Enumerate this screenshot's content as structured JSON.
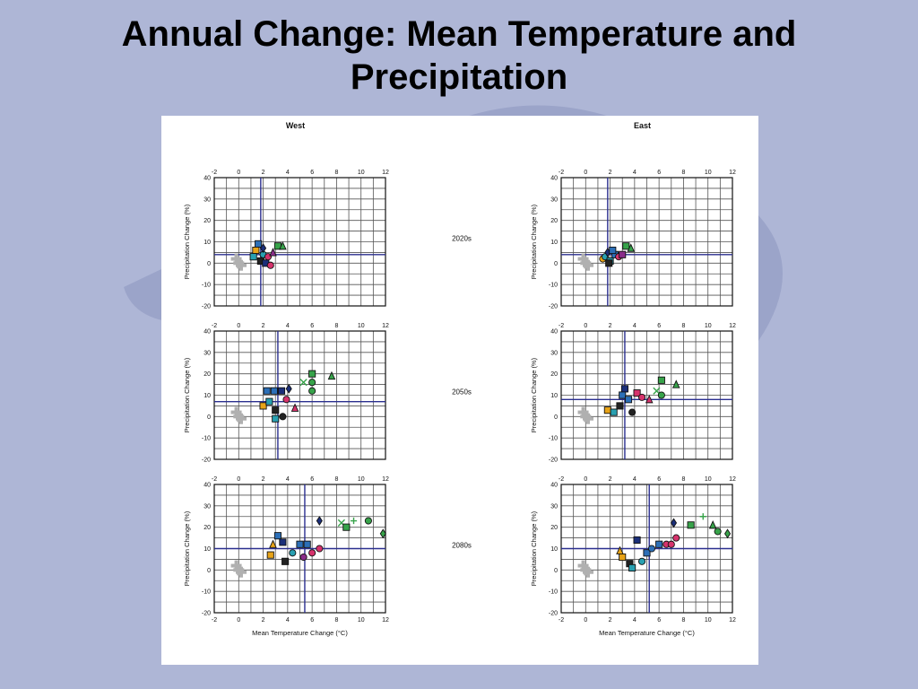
{
  "slide": {
    "title_line1": "Annual Change: Mean Temperature and",
    "title_line2": "Precipitation"
  },
  "colors": {
    "background": "#aeb6d6",
    "reference_line": "#2b2f8f",
    "observed_marker": "#b0b0b0",
    "model_colors": [
      "#2c6fb7",
      "#e8a317",
      "#29a0b1",
      "#1b2f7a",
      "#d6336c",
      "#8a2d8a",
      "#37a34a",
      "#222222"
    ]
  },
  "chart_data": {
    "type": "scatter",
    "column_titles": [
      "West",
      "East"
    ],
    "row_labels": [
      "2020s",
      "2050s",
      "2080s"
    ],
    "xlabel": "Mean Temperature Change (°C)",
    "ylabel": "Precipitation Change (%)",
    "xlim": [
      -2,
      12
    ],
    "ylim": [
      -20,
      40
    ],
    "xticks": [
      "-2",
      "0",
      "2",
      "4",
      "6",
      "8",
      "10",
      "12"
    ],
    "yticks": [
      "40",
      "30",
      "20",
      "10",
      "0",
      "-10",
      "-20"
    ],
    "grid": true,
    "panels": [
      {
        "region": "West",
        "period": "2020s",
        "ref_x": 1.8,
        "ref_y": 4,
        "observed": [
          [
            0,
            0
          ],
          [
            -0.2,
            2
          ],
          [
            0.2,
            -1
          ]
        ],
        "points": [
          [
            1.6,
            9,
            "square",
            0
          ],
          [
            1.4,
            6,
            "square",
            1
          ],
          [
            2.0,
            4,
            "circle",
            2
          ],
          [
            1.8,
            1,
            "square",
            7
          ],
          [
            2.2,
            0,
            "square",
            3
          ],
          [
            2.4,
            3,
            "circle",
            4
          ],
          [
            2.8,
            5,
            "triangle",
            5
          ],
          [
            3.2,
            8,
            "square",
            6
          ],
          [
            3.6,
            8,
            "triangle",
            6
          ],
          [
            2.6,
            -1,
            "circle",
            4
          ],
          [
            1.2,
            3,
            "square",
            2
          ],
          [
            2.0,
            7,
            "diamond",
            3
          ]
        ]
      },
      {
        "region": "West",
        "period": "2050s",
        "ref_x": 3.2,
        "ref_y": 7,
        "observed": [
          [
            0,
            0
          ],
          [
            -0.2,
            2
          ],
          [
            0.2,
            -1
          ]
        ],
        "points": [
          [
            2.3,
            12,
            "square",
            0
          ],
          [
            2.9,
            12,
            "square",
            0
          ],
          [
            3.5,
            12,
            "square",
            3
          ],
          [
            4.1,
            13,
            "diamond",
            3
          ],
          [
            2.0,
            5,
            "square",
            1
          ],
          [
            2.5,
            7,
            "square",
            2
          ],
          [
            3.0,
            3,
            "square",
            7
          ],
          [
            3.6,
            0,
            "circle",
            7
          ],
          [
            3.0,
            -1,
            "square",
            2
          ],
          [
            3.9,
            8,
            "circle",
            4
          ],
          [
            4.6,
            4,
            "triangle",
            4
          ],
          [
            5.3,
            16,
            "x",
            6
          ],
          [
            6.0,
            20,
            "square",
            6
          ],
          [
            6.0,
            16,
            "circle",
            6
          ],
          [
            6.0,
            12,
            "circle",
            6
          ],
          [
            7.6,
            19,
            "triangle",
            6
          ]
        ]
      },
      {
        "region": "West",
        "period": "2080s",
        "ref_x": 5.4,
        "ref_y": 10,
        "observed": [
          [
            0,
            0
          ],
          [
            -0.2,
            2
          ],
          [
            0.2,
            -1
          ]
        ],
        "points": [
          [
            2.6,
            7,
            "square",
            1
          ],
          [
            2.8,
            12,
            "triangle",
            1
          ],
          [
            3.2,
            16,
            "square",
            0
          ],
          [
            3.6,
            13,
            "square",
            3
          ],
          [
            3.8,
            4,
            "square",
            7
          ],
          [
            4.4,
            8,
            "circle",
            2
          ],
          [
            5.0,
            12,
            "square",
            0
          ],
          [
            5.3,
            6,
            "circle",
            5
          ],
          [
            5.6,
            12,
            "square",
            0
          ],
          [
            6.0,
            8,
            "circle",
            4
          ],
          [
            6.6,
            10,
            "circle",
            4
          ],
          [
            6.6,
            23,
            "diamond",
            3
          ],
          [
            8.4,
            22,
            "x",
            6
          ],
          [
            9.4,
            23,
            "plus",
            6
          ],
          [
            8.8,
            20,
            "square",
            6
          ],
          [
            10.6,
            23,
            "circle",
            6
          ],
          [
            11.8,
            17,
            "diamond",
            6
          ]
        ]
      },
      {
        "region": "East",
        "period": "2020s",
        "ref_x": 1.8,
        "ref_y": 4,
        "observed": [
          [
            0,
            0
          ],
          [
            -0.2,
            2
          ],
          [
            0.2,
            -1
          ]
        ],
        "points": [
          [
            1.4,
            2,
            "circle",
            1
          ],
          [
            1.6,
            3,
            "circle",
            2
          ],
          [
            2.0,
            1,
            "square",
            2
          ],
          [
            1.8,
            5,
            "diamond",
            3
          ],
          [
            2.4,
            4,
            "square",
            0
          ],
          [
            2.7,
            3,
            "circle",
            4
          ],
          [
            3.0,
            4,
            "square",
            5
          ],
          [
            3.3,
            8,
            "square",
            6
          ],
          [
            3.7,
            7,
            "triangle",
            6
          ],
          [
            2.2,
            6,
            "square",
            0
          ],
          [
            1.9,
            0,
            "square",
            7
          ]
        ]
      },
      {
        "region": "East",
        "period": "2050s",
        "ref_x": 3.2,
        "ref_y": 8,
        "observed": [
          [
            0,
            0
          ],
          [
            -0.2,
            2
          ],
          [
            0.2,
            -1
          ]
        ],
        "points": [
          [
            1.8,
            3,
            "square",
            1
          ],
          [
            2.3,
            2,
            "square",
            2
          ],
          [
            2.8,
            5,
            "square",
            7
          ],
          [
            3.2,
            13,
            "square",
            3
          ],
          [
            3.0,
            10,
            "square",
            0
          ],
          [
            3.5,
            8,
            "square",
            0
          ],
          [
            3.8,
            2,
            "circle",
            7
          ],
          [
            4.2,
            11,
            "square",
            4
          ],
          [
            4.6,
            9,
            "circle",
            4
          ],
          [
            5.2,
            8,
            "triangle",
            4
          ],
          [
            5.8,
            12,
            "x",
            6
          ],
          [
            6.2,
            17,
            "square",
            6
          ],
          [
            6.2,
            10,
            "circle",
            6
          ],
          [
            7.4,
            15,
            "triangle",
            6
          ]
        ]
      },
      {
        "region": "East",
        "period": "2080s",
        "ref_x": 5.2,
        "ref_y": 10,
        "observed": [
          [
            0,
            0
          ],
          [
            -0.2,
            2
          ],
          [
            0.2,
            -1
          ]
        ],
        "points": [
          [
            2.8,
            9,
            "triangle",
            1
          ],
          [
            3.0,
            6,
            "square",
            1
          ],
          [
            3.6,
            3,
            "square",
            7
          ],
          [
            3.8,
            1,
            "square",
            2
          ],
          [
            4.2,
            14,
            "square",
            3
          ],
          [
            4.6,
            4,
            "circle",
            2
          ],
          [
            5.0,
            8,
            "square",
            0
          ],
          [
            5.4,
            10,
            "circle",
            0
          ],
          [
            6.0,
            12,
            "square",
            0
          ],
          [
            6.6,
            12,
            "circle",
            4
          ],
          [
            7.0,
            12,
            "circle",
            4
          ],
          [
            7.4,
            15,
            "circle",
            4
          ],
          [
            7.2,
            22,
            "diamond",
            3
          ],
          [
            8.6,
            21,
            "square",
            6
          ],
          [
            9.6,
            25,
            "plus",
            6
          ],
          [
            10.4,
            21,
            "triangle",
            6
          ],
          [
            10.8,
            18,
            "circle",
            6
          ],
          [
            11.6,
            17,
            "diamond",
            6
          ]
        ]
      }
    ]
  }
}
